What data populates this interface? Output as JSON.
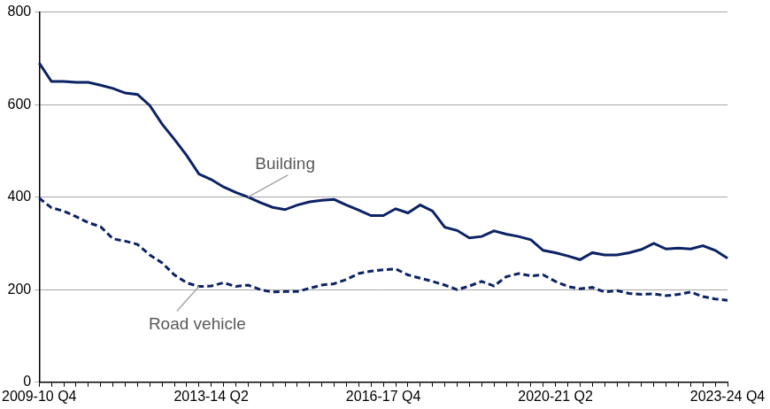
{
  "chart_data": {
    "type": "line",
    "categories": [
      "2009-10 Q4",
      null,
      null,
      null,
      null,
      null,
      null,
      null,
      null,
      null,
      null,
      null,
      null,
      null,
      "2013-14 Q2",
      null,
      null,
      null,
      null,
      null,
      null,
      null,
      null,
      null,
      null,
      null,
      null,
      null,
      "2016-17 Q4",
      null,
      null,
      null,
      null,
      null,
      null,
      null,
      null,
      null,
      null,
      null,
      null,
      null,
      "2020-21 Q2",
      null,
      null,
      null,
      null,
      null,
      null,
      null,
      null,
      null,
      null,
      null,
      null,
      null,
      "2023-24 Q4"
    ],
    "series": [
      {
        "name": "Building",
        "color": "#0b2265",
        "line_style": "solid",
        "marker": "none",
        "values": [
          690,
          650,
          650,
          648,
          648,
          642,
          635,
          625,
          622,
          598,
          558,
          525,
          490,
          450,
          438,
          422,
          410,
          400,
          388,
          378,
          373,
          383,
          390,
          393,
          395,
          383,
          372,
          360,
          360,
          375,
          366,
          383,
          370,
          335,
          328,
          312,
          315,
          327,
          320,
          315,
          308,
          285,
          280,
          273,
          265,
          280,
          275,
          275,
          280,
          287,
          300,
          288,
          290,
          288,
          295,
          285,
          268
        ]
      },
      {
        "name": "Road vehicle",
        "color": "#0b2265",
        "line_style": "dashed",
        "marker": "none",
        "values": [
          398,
          377,
          370,
          358,
          345,
          336,
          310,
          305,
          298,
          275,
          258,
          232,
          215,
          207,
          208,
          215,
          207,
          210,
          200,
          195,
          196,
          196,
          203,
          210,
          213,
          222,
          235,
          240,
          243,
          245,
          232,
          225,
          218,
          210,
          200,
          208,
          218,
          208,
          228,
          235,
          230,
          232,
          218,
          207,
          202,
          205,
          195,
          198,
          192,
          190,
          191,
          187,
          190,
          195,
          185,
          180,
          177
        ]
      }
    ],
    "ylim": [
      0,
      800
    ],
    "yticks": [
      0,
      200,
      400,
      600,
      800
    ],
    "grid": true
  }
}
